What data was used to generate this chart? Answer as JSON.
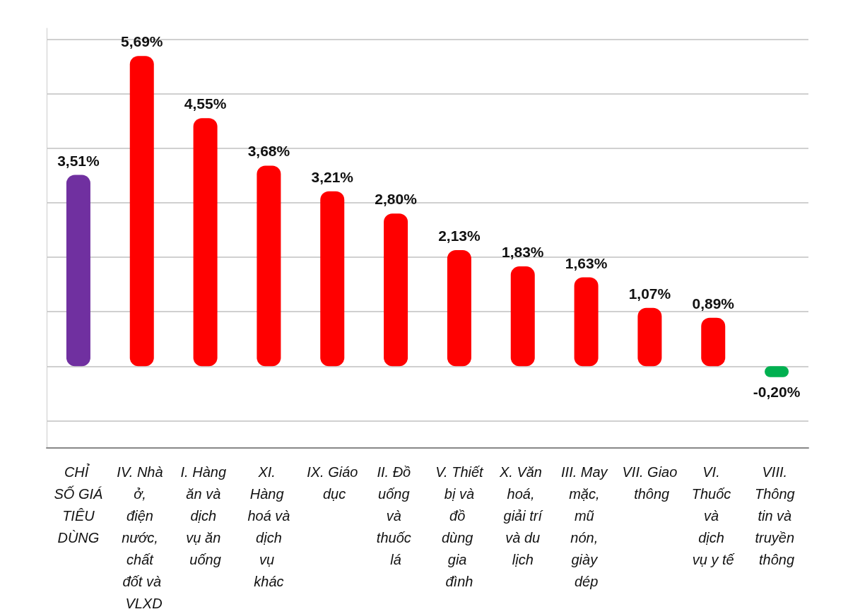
{
  "chart_data": {
    "type": "bar",
    "categories": [
      "CHỈ SỐ GIÁ TIÊU DÙNG",
      "IV. Nhà ở, điện nước, chất đốt và VLXD",
      "I. Hàng ăn và dịch vụ ăn uống",
      "XI. Hàng hoá và dịch vụ khác",
      "IX. Giáo dục",
      "II. Đồ uống và thuốc lá",
      "V. Thiết bị và đồ dùng gia đình",
      "X. Văn hoá, giải trí và du lịch",
      "III. May mặc, mũ nón, giày dép",
      "VII. Giao thông",
      "VI. Thuốc và dịch vụ y tế",
      "VIII. Thông tin và truyền thông"
    ],
    "values": [
      3.51,
      5.69,
      4.55,
      3.68,
      3.21,
      2.8,
      2.13,
      1.83,
      1.63,
      1.07,
      0.89,
      -0.2
    ],
    "colors": [
      "#7030a0",
      "#ff0000",
      "#ff0000",
      "#ff0000",
      "#ff0000",
      "#ff0000",
      "#ff0000",
      "#ff0000",
      "#ff0000",
      "#ff0000",
      "#ff0000",
      "#00b050"
    ],
    "value_labels": [
      "3,51%",
      "5,69%",
      "4,55%",
      "3,68%",
      "3,21%",
      "2,80%",
      "2,13%",
      "1,83%",
      "1,63%",
      "1,07%",
      "0,89%",
      "-0,20%"
    ],
    "ylim": [
      -1.5,
      6.2
    ],
    "yticks": [
      {
        "value": -1,
        "label": null
      },
      {
        "value": 0,
        "label": null
      },
      {
        "value": 1,
        "label": null
      },
      {
        "value": 2,
        "label": null
      },
      {
        "value": 3,
        "label": null
      },
      {
        "value": 4,
        "label": null
      },
      {
        "value": 5,
        "label": null
      },
      {
        "value": 6,
        "label": null
      }
    ],
    "grid": "y",
    "tick_labels": "x"
  }
}
